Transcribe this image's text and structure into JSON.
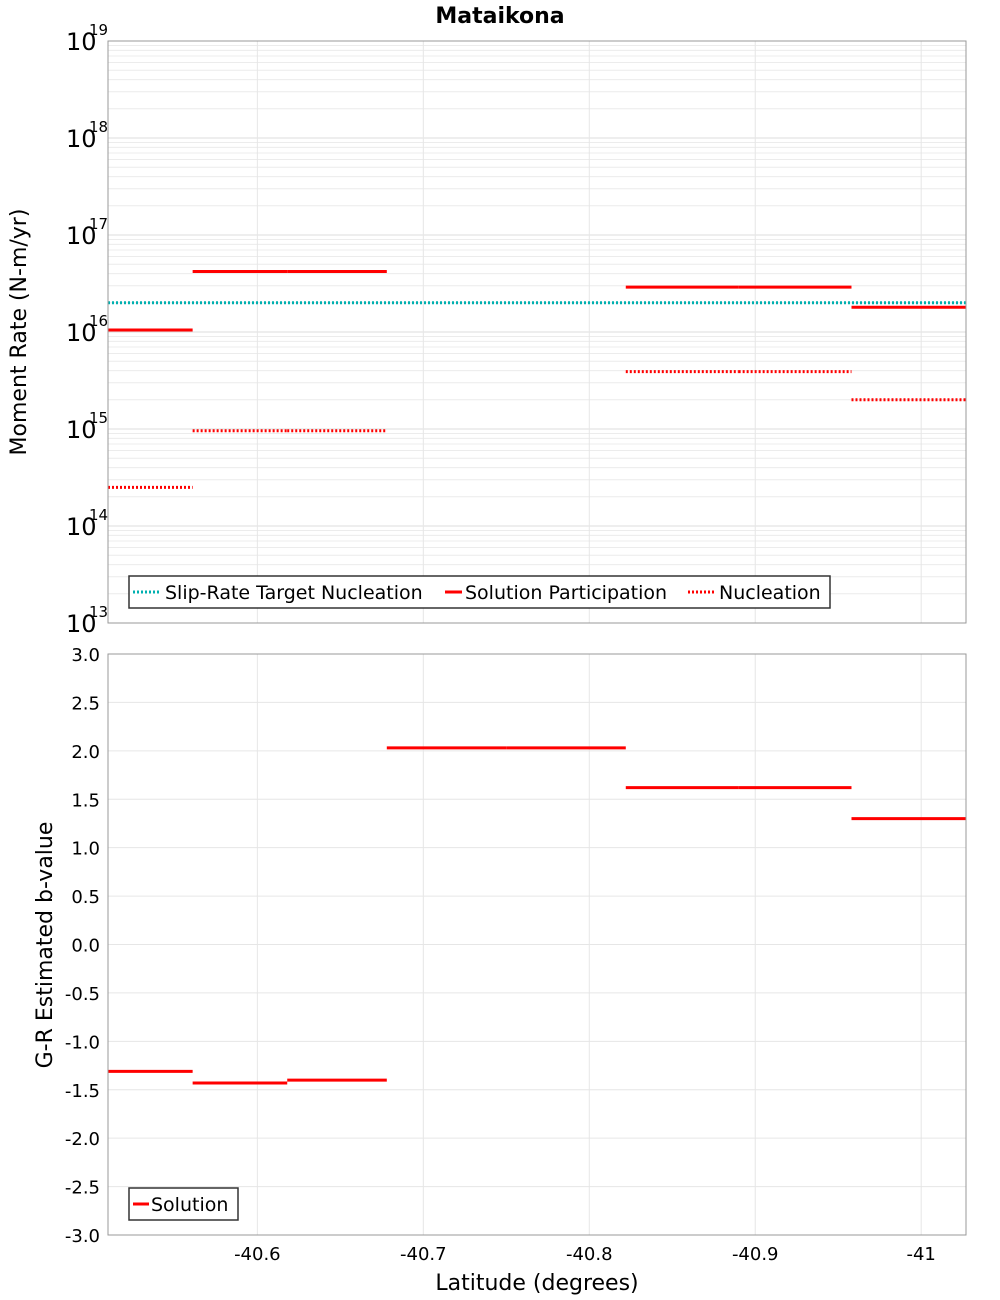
{
  "chart_data": [
    {
      "type": "line",
      "title": "Mataikona",
      "ylabel": "Moment Rate (N-m/yr)",
      "xlabel": "",
      "yscale": "log",
      "ylim": [
        10000000000000.0,
        1e+19
      ],
      "xlim": [
        -40.51,
        -41.027
      ],
      "x_reversed": true,
      "grid": true,
      "y_tick_labels": [
        {
          "base": "10",
          "exp": "13"
        },
        {
          "base": "10",
          "exp": "14"
        },
        {
          "base": "10",
          "exp": "15"
        },
        {
          "base": "10",
          "exp": "16"
        },
        {
          "base": "10",
          "exp": "17"
        },
        {
          "base": "10",
          "exp": "18"
        },
        {
          "base": "10",
          "exp": "19"
        }
      ],
      "legend": {
        "placement": "bottom-left",
        "entries": [
          "Slip-Rate Target Nucleation",
          "Solution Participation",
          "Nucleation"
        ]
      },
      "series": [
        {
          "name": "Slip-Rate Target Nucleation",
          "color": "#00b0b0",
          "style": "dotted",
          "segments": [
            {
              "x": [
                -40.51,
                -41.027
              ],
              "y": 2e+16
            }
          ]
        },
        {
          "name": "Solution Participation",
          "color": "#ff0000",
          "style": "solid",
          "segments": [
            {
              "x": [
                -40.51,
                -40.561
              ],
              "y": 1.05e+16
            },
            {
              "x": [
                -40.561,
                -40.618
              ],
              "y": 4.2e+16
            },
            {
              "x": [
                -40.618,
                -40.678
              ],
              "y": 4.2e+16
            },
            {
              "x": [
                -40.822,
                -40.89
              ],
              "y": 2.9e+16
            },
            {
              "x": [
                -40.89,
                -40.958
              ],
              "y": 2.9e+16
            },
            {
              "x": [
                -40.958,
                -41.027
              ],
              "y": 1.8e+16
            }
          ]
        },
        {
          "name": "Nucleation",
          "color": "#ff0000",
          "style": "dotted",
          "segments": [
            {
              "x": [
                -40.51,
                -40.561
              ],
              "y": 250000000000000.0
            },
            {
              "x": [
                -40.561,
                -40.618
              ],
              "y": 960000000000000.0
            },
            {
              "x": [
                -40.618,
                -40.678
              ],
              "y": 960000000000000.0
            },
            {
              "x": [
                -40.822,
                -40.89
              ],
              "y": 3900000000000000.0
            },
            {
              "x": [
                -40.89,
                -40.958
              ],
              "y": 3900000000000000.0
            },
            {
              "x": [
                -40.958,
                -41.027
              ],
              "y": 2000000000000000.0
            }
          ]
        }
      ]
    },
    {
      "type": "line",
      "title": "",
      "ylabel": "G-R Estimated b-value",
      "xlabel": "Latitude (degrees)",
      "ylim": [
        -3.0,
        3.0
      ],
      "xlim": [
        -40.51,
        -41.027
      ],
      "x_reversed": true,
      "grid": true,
      "y_ticks": [
        "-3.0",
        "-2.5",
        "-2.0",
        "-1.5",
        "-1.0",
        "-0.5",
        "0.0",
        "0.5",
        "1.0",
        "1.5",
        "2.0",
        "2.5",
        "3.0"
      ],
      "x_ticks": [
        "-40.6",
        "-40.7",
        "-40.8",
        "-40.9",
        "-41"
      ],
      "legend": {
        "placement": "bottom-left",
        "entries": [
          "Solution"
        ]
      },
      "series": [
        {
          "name": "Solution",
          "color": "#ff0000",
          "style": "solid",
          "segments": [
            {
              "x": [
                -40.51,
                -40.561
              ],
              "y": -1.31
            },
            {
              "x": [
                -40.561,
                -40.618
              ],
              "y": -1.43
            },
            {
              "x": [
                -40.618,
                -40.678
              ],
              "y": -1.4
            },
            {
              "x": [
                -40.678,
                -40.75
              ],
              "y": 2.03
            },
            {
              "x": [
                -40.75,
                -40.822
              ],
              "y": 2.03
            },
            {
              "x": [
                -40.822,
                -40.89
              ],
              "y": 1.62
            },
            {
              "x": [
                -40.89,
                -40.958
              ],
              "y": 1.62
            },
            {
              "x": [
                -40.958,
                -41.027
              ],
              "y": 1.3
            }
          ]
        }
      ]
    }
  ]
}
